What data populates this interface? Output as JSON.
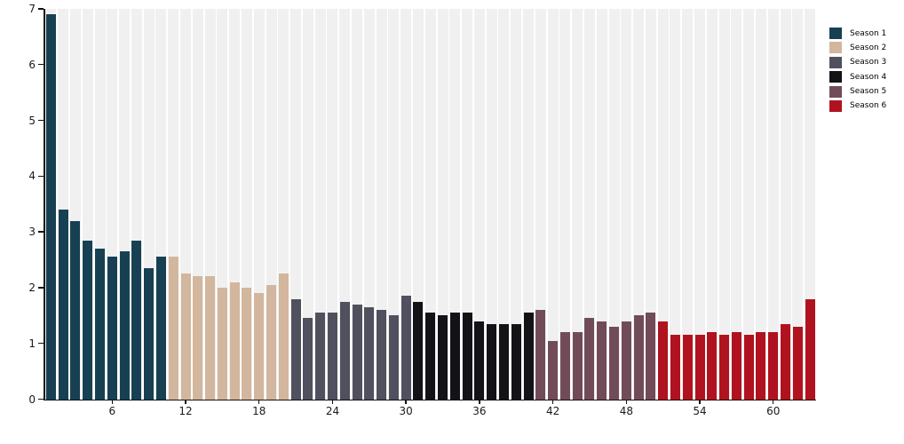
{
  "chart_data": {
    "type": "bar",
    "title": "",
    "xlabel": "",
    "ylabel": "",
    "ylim": [
      0,
      7
    ],
    "y_ticks": [
      0,
      1,
      2,
      3,
      4,
      5,
      6,
      7
    ],
    "x_ticks": [
      6,
      12,
      18,
      24,
      30,
      36,
      42,
      48,
      54,
      60
    ],
    "x_total_bars": 63,
    "grid": "vertical striped background bands, one per bar slot",
    "legend_position": "top-right outside plot",
    "style": {
      "band_color": "#F0F0F0",
      "band_gap_color": "#FFFFFF",
      "axis_color": "#111111"
    },
    "series": [
      {
        "name": "Season 1",
        "color": "#174153",
        "values": [
          6.9,
          3.4,
          3.2,
          2.85,
          2.7,
          2.55,
          2.65,
          2.85,
          2.35,
          2.55
        ]
      },
      {
        "name": "Season 2",
        "color": "#D2B69D",
        "values": [
          2.55,
          2.25,
          2.2,
          2.2,
          2.0,
          2.1,
          2.0,
          1.9,
          2.05,
          2.25
        ]
      },
      {
        "name": "Season 3",
        "color": "#50505E",
        "values": [
          1.8,
          1.45,
          1.55,
          1.55,
          1.75,
          1.7,
          1.65,
          1.6,
          1.5,
          1.85
        ]
      },
      {
        "name": "Season 4",
        "color": "#121217",
        "values": [
          1.75,
          1.55,
          1.5,
          1.55,
          1.55,
          1.4,
          1.35,
          1.35,
          1.35,
          1.55
        ]
      },
      {
        "name": "Season 5",
        "color": "#714C58",
        "values": [
          1.6,
          1.05,
          1.2,
          1.2,
          1.45,
          1.4,
          1.3,
          1.4,
          1.5,
          1.55
        ]
      },
      {
        "name": "Season 6",
        "color": "#B1121F",
        "values": [
          1.4,
          1.15,
          1.15,
          1.15,
          1.2,
          1.15,
          1.2,
          1.15,
          1.2,
          1.2,
          1.35,
          1.3,
          1.8
        ]
      }
    ]
  }
}
